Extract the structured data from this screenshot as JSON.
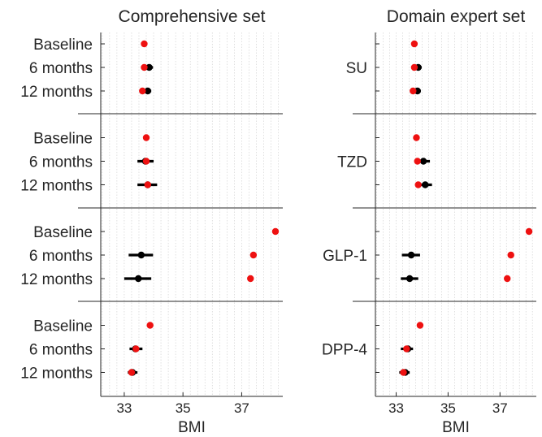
{
  "chart_data": [
    {
      "type": "forest",
      "title": "Comprehensive set",
      "xlabel": "BMI",
      "xlim": [
        32.2,
        38.4
      ],
      "xticks": [
        33,
        35,
        37
      ],
      "grid": "vertical dotted minor grid",
      "row_labels": [
        "Baseline",
        "6 months",
        "12 months"
      ],
      "colors": {
        "treated": "#ee1111",
        "control": "#000000"
      },
      "groups": [
        {
          "name": "SU",
          "rows": [
            {
              "label": "Baseline",
              "red": 33.68,
              "black": null,
              "ci": null
            },
            {
              "label": "6 months",
              "red": 33.68,
              "black": 33.85,
              "ci": [
                33.72,
                33.98
              ]
            },
            {
              "label": "12 months",
              "red": 33.62,
              "black": 33.8,
              "ci": [
                33.68,
                33.92
              ]
            }
          ]
        },
        {
          "name": "TZD",
          "rows": [
            {
              "label": "Baseline",
              "red": 33.75,
              "black": null,
              "ci": null
            },
            {
              "label": "6 months",
              "red": 33.75,
              "black": 33.72,
              "ci": [
                33.45,
                34.0
              ]
            },
            {
              "label": "12 months",
              "red": 33.8,
              "black": 33.8,
              "ci": [
                33.45,
                34.12
              ]
            }
          ]
        },
        {
          "name": "GLP-1",
          "rows": [
            {
              "label": "Baseline",
              "red": 38.15,
              "black": null,
              "ci": null
            },
            {
              "label": "6 months",
              "red": 37.4,
              "black": 33.58,
              "ci": [
                33.15,
                33.98
              ]
            },
            {
              "label": "12 months",
              "red": 37.3,
              "black": 33.48,
              "ci": [
                33.0,
                33.92
              ]
            }
          ]
        },
        {
          "name": "DPP-4",
          "rows": [
            {
              "label": "Baseline",
              "red": 33.88,
              "black": null,
              "ci": null
            },
            {
              "label": "6 months",
              "red": 33.4,
              "black": 33.38,
              "ci": [
                33.18,
                33.62
              ]
            },
            {
              "label": "12 months",
              "red": 33.25,
              "black": 33.28,
              "ci": [
                33.12,
                33.45
              ]
            }
          ]
        }
      ]
    },
    {
      "type": "forest",
      "title": "Domain expert set",
      "xlabel": "BMI",
      "xlim": [
        32.2,
        38.4
      ],
      "xticks": [
        33,
        35,
        37
      ],
      "grid": "vertical dotted minor grid",
      "group_labels": [
        "SU",
        "TZD",
        "GLP-1",
        "DPP-4"
      ],
      "colors": {
        "treated": "#ee1111",
        "control": "#000000"
      },
      "groups": [
        {
          "name": "SU",
          "rows": [
            {
              "label": "Baseline",
              "red": 33.7,
              "black": null,
              "ci": null
            },
            {
              "label": "6 months",
              "red": 33.7,
              "black": 33.85,
              "ci": [
                33.72,
                33.98
              ]
            },
            {
              "label": "12 months",
              "red": 33.65,
              "black": 33.82,
              "ci": [
                33.7,
                33.95
              ]
            }
          ]
        },
        {
          "name": "TZD",
          "rows": [
            {
              "label": "Baseline",
              "red": 33.78,
              "black": null,
              "ci": null
            },
            {
              "label": "6 months",
              "red": 33.82,
              "black": 34.05,
              "ci": [
                33.8,
                34.3
              ]
            },
            {
              "label": "12 months",
              "red": 33.85,
              "black": 34.12,
              "ci": [
                33.88,
                34.38
              ]
            }
          ]
        },
        {
          "name": "GLP-1",
          "rows": [
            {
              "label": "Baseline",
              "red": 38.12,
              "black": null,
              "ci": null
            },
            {
              "label": "6 months",
              "red": 37.42,
              "black": 33.58,
              "ci": [
                33.22,
                33.92
              ]
            },
            {
              "label": "12 months",
              "red": 37.28,
              "black": 33.52,
              "ci": [
                33.18,
                33.85
              ]
            }
          ]
        },
        {
          "name": "DPP-4",
          "rows": [
            {
              "label": "Baseline",
              "red": 33.92,
              "black": null,
              "ci": null
            },
            {
              "label": "6 months",
              "red": 33.4,
              "black": 33.45,
              "ci": [
                33.18,
                33.65
              ]
            },
            {
              "label": "12 months",
              "red": 33.28,
              "black": 33.35,
              "ci": [
                33.12,
                33.52
              ]
            }
          ]
        }
      ]
    }
  ]
}
